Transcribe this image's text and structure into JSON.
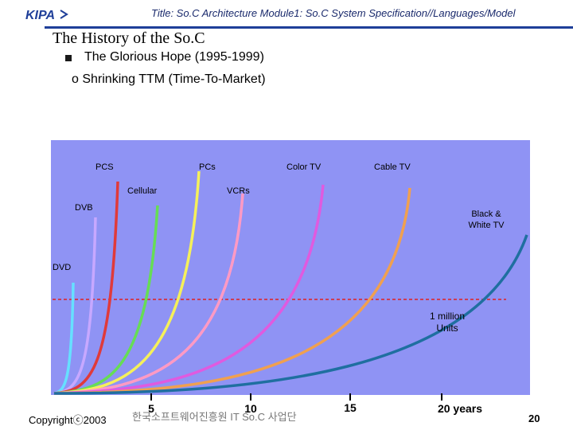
{
  "header": {
    "logo_text": "KIPA",
    "title": "Title: So.C Architecture  Module1: So.C System Specification//Languages/Model"
  },
  "slide": {
    "title": "The History of the So.C",
    "bullet1": "The Glorious Hope (1995-1999)",
    "bullet2": "o Shrinking TTM  (Time-To-Market)"
  },
  "chart_data": {
    "type": "line",
    "description_labels": [],
    "series": [
      {
        "name": "DVD",
        "color": "#66e0ff"
      },
      {
        "name": "DVB",
        "color": "#c7a8ff"
      },
      {
        "name": "PCS",
        "color": "#e03a3a"
      },
      {
        "name": "Cellular",
        "color": "#66dd55"
      },
      {
        "name": "PCs",
        "color": "#f5f05a"
      },
      {
        "name": "VCRs",
        "color": "#ff9ac4"
      },
      {
        "name": "Color TV",
        "color": "#e05adf"
      },
      {
        "name": "Cable TV",
        "color": "#f0a050"
      },
      {
        "name": "Black & White TV",
        "color": "#1f6fa0"
      }
    ],
    "threshold_label": "1 million Units",
    "x_ticks": [
      "5",
      "10",
      "15",
      "20 years"
    ],
    "chart_bg": "#8f93f4",
    "threshold_color": "#e02020"
  },
  "footer": {
    "copyright": "Copyrightⓒ2003",
    "org": "한국소프트웨어진흥원   IT So.C 사업단",
    "page_number": "20"
  }
}
